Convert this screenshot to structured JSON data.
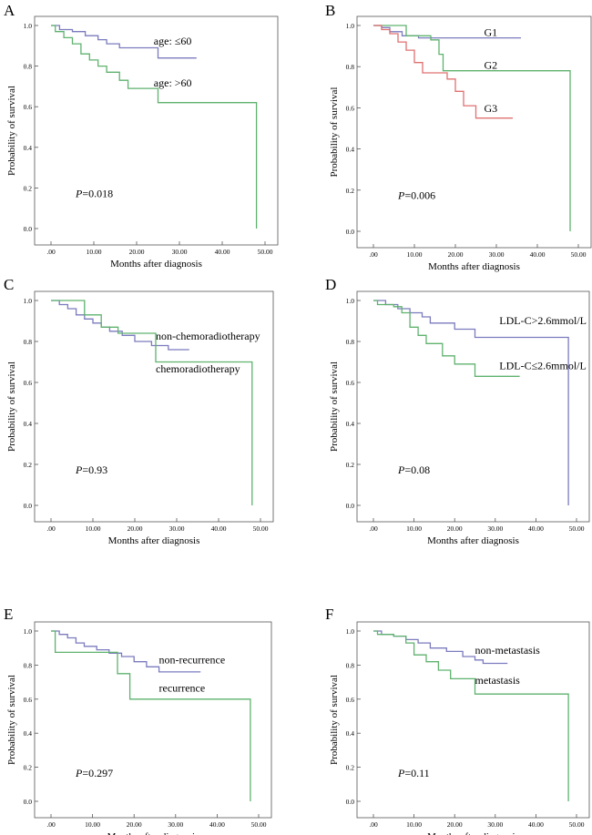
{
  "chart_data": [
    {
      "panel": "A",
      "type": "line",
      "subtype": "kaplan-meier",
      "xlabel": "Months after diagnosis",
      "ylabel": "Probability of survival",
      "xlim": [
        0,
        50
      ],
      "ylim": [
        0,
        1
      ],
      "xticks": [
        ".00",
        "10.00",
        "20.00",
        "30.00",
        "40.00",
        "50.00"
      ],
      "yticks": [
        "0.0",
        "0.2",
        "0.4",
        "0.6",
        "0.8",
        "1.0"
      ],
      "pvalue": {
        "label": "P",
        "text": "=0.018"
      },
      "series": [
        {
          "name": "age: ≤60",
          "color": "#7b7bbf",
          "label_x": 24,
          "label_y": 0.905,
          "points": [
            [
              0,
              1
            ],
            [
              2,
              0.98
            ],
            [
              5,
              0.97
            ],
            [
              8,
              0.95
            ],
            [
              11,
              0.93
            ],
            [
              13,
              0.91
            ],
            [
              16,
              0.89
            ],
            [
              25,
              0.84
            ],
            [
              34,
              0.84
            ]
          ]
        },
        {
          "name": "age: >60",
          "color": "#5fb26e",
          "label_x": 24,
          "label_y": 0.7,
          "points": [
            [
              0,
              1
            ],
            [
              1,
              0.97
            ],
            [
              3,
              0.94
            ],
            [
              5,
              0.91
            ],
            [
              7,
              0.86
            ],
            [
              9,
              0.83
            ],
            [
              11,
              0.8
            ],
            [
              13,
              0.77
            ],
            [
              16,
              0.73
            ],
            [
              18,
              0.69
            ],
            [
              25,
              0.62
            ],
            [
              48,
              0.62
            ],
            [
              48,
              0
            ]
          ]
        }
      ]
    },
    {
      "panel": "B",
      "type": "line",
      "subtype": "kaplan-meier",
      "xlabel": "Months after diagnosis",
      "ylabel": "Probability of survival",
      "xlim": [
        0,
        50
      ],
      "ylim": [
        0,
        1
      ],
      "xticks": [
        ".00",
        "10.00",
        "20.00",
        "30.00",
        "40.00",
        "50.00"
      ],
      "yticks": [
        "0.0",
        "0.2",
        "0.4",
        "0.6",
        "0.8",
        "1.0"
      ],
      "pvalue": {
        "label": "P",
        "text": "=0.006"
      },
      "series": [
        {
          "name": "G1",
          "color": "#7b7bbf",
          "label_x": 27,
          "label_y": 0.95,
          "points": [
            [
              0,
              1
            ],
            [
              2,
              0.99
            ],
            [
              4,
              0.97
            ],
            [
              7,
              0.95
            ],
            [
              11,
              0.94
            ],
            [
              36,
              0.94
            ]
          ]
        },
        {
          "name": "G2",
          "color": "#5fb26e",
          "label_x": 27,
          "label_y": 0.79,
          "points": [
            [
              0,
              1
            ],
            [
              8,
              0.95
            ],
            [
              14,
              0.93
            ],
            [
              16,
              0.86
            ],
            [
              17,
              0.78
            ],
            [
              48,
              0.78
            ],
            [
              48,
              0
            ]
          ]
        },
        {
          "name": "G3",
          "color": "#e07070",
          "label_x": 27,
          "label_y": 0.58,
          "points": [
            [
              0,
              1
            ],
            [
              2,
              0.98
            ],
            [
              4,
              0.96
            ],
            [
              6,
              0.92
            ],
            [
              8,
              0.88
            ],
            [
              10,
              0.82
            ],
            [
              12,
              0.77
            ],
            [
              18,
              0.74
            ],
            [
              20,
              0.68
            ],
            [
              22,
              0.61
            ],
            [
              25,
              0.55
            ],
            [
              34,
              0.55
            ]
          ]
        }
      ]
    },
    {
      "panel": "C",
      "type": "line",
      "subtype": "kaplan-meier",
      "xlabel": "Months after diagnosis",
      "ylabel": "Probability of survival",
      "xlim": [
        0,
        50
      ],
      "ylim": [
        0,
        1
      ],
      "xticks": [
        ".00",
        "10.00",
        "20.00",
        "30.00",
        "40.00",
        "50.00"
      ],
      "yticks": [
        "0.0",
        "0.2",
        "0.4",
        "0.6",
        "0.8",
        "1.0"
      ],
      "pvalue": {
        "label": "P",
        "text": "=0.93"
      },
      "series": [
        {
          "name": "non-chemoradiotherapy",
          "color": "#7b7bbf",
          "label_x": 25,
          "label_y": 0.81,
          "points": [
            [
              0,
              1
            ],
            [
              2,
              0.98
            ],
            [
              4,
              0.96
            ],
            [
              6,
              0.93
            ],
            [
              8,
              0.91
            ],
            [
              10,
              0.89
            ],
            [
              12,
              0.87
            ],
            [
              14,
              0.85
            ],
            [
              17,
              0.83
            ],
            [
              20,
              0.8
            ],
            [
              24,
              0.78
            ],
            [
              28,
              0.76
            ],
            [
              33,
              0.76
            ]
          ]
        },
        {
          "name": "chemoradiotherapy",
          "color": "#5fb26e",
          "label_x": 25,
          "label_y": 0.65,
          "points": [
            [
              0,
              1
            ],
            [
              8,
              1
            ],
            [
              8,
              0.93
            ],
            [
              12,
              0.87
            ],
            [
              16,
              0.84
            ],
            [
              25,
              0.7
            ],
            [
              48,
              0.7
            ],
            [
              48,
              0
            ]
          ]
        }
      ]
    },
    {
      "panel": "D",
      "type": "line",
      "subtype": "kaplan-meier",
      "xlabel": "Months after diagnosis",
      "ylabel": "Probability of survival",
      "xlim": [
        0,
        50
      ],
      "ylim": [
        0,
        1
      ],
      "xticks": [
        ".00",
        "10.00",
        "20.00",
        "30.00",
        "40.00",
        "50.00"
      ],
      "yticks": [
        "0.0",
        "0.2",
        "0.4",
        "0.6",
        "0.8",
        "1.0"
      ],
      "pvalue": {
        "label": "P",
        "text": "=0.08"
      },
      "series": [
        {
          "name": "LDL-C>2.6mmol/L",
          "color": "#7b7bbf",
          "label_x": 31,
          "label_y": 0.885,
          "points": [
            [
              0,
              1
            ],
            [
              3,
              0.98
            ],
            [
              6,
              0.96
            ],
            [
              9,
              0.94
            ],
            [
              12,
              0.92
            ],
            [
              14,
              0.89
            ],
            [
              20,
              0.86
            ],
            [
              25,
              0.82
            ],
            [
              48,
              0.82
            ],
            [
              48,
              0
            ]
          ]
        },
        {
          "name": "LDL-C≤2.6mmol/L",
          "color": "#5fb26e",
          "label_x": 31,
          "label_y": 0.665,
          "points": [
            [
              0,
              1
            ],
            [
              1,
              0.98
            ],
            [
              5,
              0.97
            ],
            [
              7,
              0.94
            ],
            [
              9,
              0.87
            ],
            [
              11,
              0.83
            ],
            [
              13,
              0.79
            ],
            [
              17,
              0.73
            ],
            [
              20,
              0.69
            ],
            [
              25,
              0.63
            ],
            [
              36,
              0.63
            ]
          ]
        }
      ]
    },
    {
      "panel": "E",
      "type": "line",
      "subtype": "kaplan-meier",
      "xlabel": "Months after diagnosis",
      "ylabel": "Probability of survival",
      "xlim": [
        0,
        50
      ],
      "ylim": [
        0,
        1
      ],
      "xticks": [
        ".00",
        "10.00",
        "20.00",
        "30.00",
        "40.00",
        "50.00"
      ],
      "yticks": [
        "0.0",
        "0.2",
        "0.4",
        "0.6",
        "0.8",
        "1.0"
      ],
      "pvalue": {
        "label": "P",
        "text": "=0.297"
      },
      "series": [
        {
          "name": "non-recurrence",
          "color": "#7b7bbf",
          "label_x": 26,
          "label_y": 0.81,
          "points": [
            [
              0,
              1
            ],
            [
              2,
              0.98
            ],
            [
              4,
              0.96
            ],
            [
              6,
              0.93
            ],
            [
              8,
              0.91
            ],
            [
              11,
              0.89
            ],
            [
              14,
              0.87
            ],
            [
              17,
              0.85
            ],
            [
              20,
              0.82
            ],
            [
              23,
              0.79
            ],
            [
              26,
              0.76
            ],
            [
              36,
              0.76
            ]
          ]
        },
        {
          "name": "recurrence",
          "color": "#5fb26e",
          "label_x": 26,
          "label_y": 0.645,
          "points": [
            [
              0,
              1
            ],
            [
              1,
              1
            ],
            [
              1,
              0.875
            ],
            [
              16,
              0.875
            ],
            [
              16,
              0.75
            ],
            [
              19,
              0.75
            ],
            [
              19,
              0.6
            ],
            [
              48,
              0.6
            ],
            [
              48,
              0
            ]
          ]
        }
      ]
    },
    {
      "panel": "F",
      "type": "line",
      "subtype": "kaplan-meier",
      "xlabel": "Months after diagnosis",
      "ylabel": "Probability of survival",
      "xlim": [
        0,
        50
      ],
      "ylim": [
        0,
        1
      ],
      "xticks": [
        ".00",
        "10.00",
        "20.00",
        "30.00",
        "40.00",
        "50.00"
      ],
      "yticks": [
        "0.0",
        "0.2",
        "0.4",
        "0.6",
        "0.8",
        "1.0"
      ],
      "pvalue": {
        "label": "P",
        "text": "=0.11"
      },
      "series": [
        {
          "name": "non-metastasis",
          "color": "#7b7bbf",
          "label_x": 25,
          "label_y": 0.865,
          "points": [
            [
              0,
              1
            ],
            [
              2,
              0.98
            ],
            [
              5,
              0.97
            ],
            [
              8,
              0.95
            ],
            [
              11,
              0.93
            ],
            [
              14,
              0.9
            ],
            [
              18,
              0.88
            ],
            [
              22,
              0.85
            ],
            [
              25,
              0.83
            ],
            [
              27,
              0.81
            ],
            [
              33,
              0.81
            ]
          ]
        },
        {
          "name": "metastasis",
          "color": "#5fb26e",
          "label_x": 25,
          "label_y": 0.69,
          "points": [
            [
              0,
              1
            ],
            [
              1,
              0.98
            ],
            [
              5,
              0.97
            ],
            [
              8,
              0.93
            ],
            [
              10,
              0.86
            ],
            [
              13,
              0.82
            ],
            [
              16,
              0.77
            ],
            [
              19,
              0.72
            ],
            [
              25,
              0.63
            ],
            [
              48,
              0.63
            ],
            [
              48,
              0
            ]
          ]
        }
      ]
    }
  ]
}
